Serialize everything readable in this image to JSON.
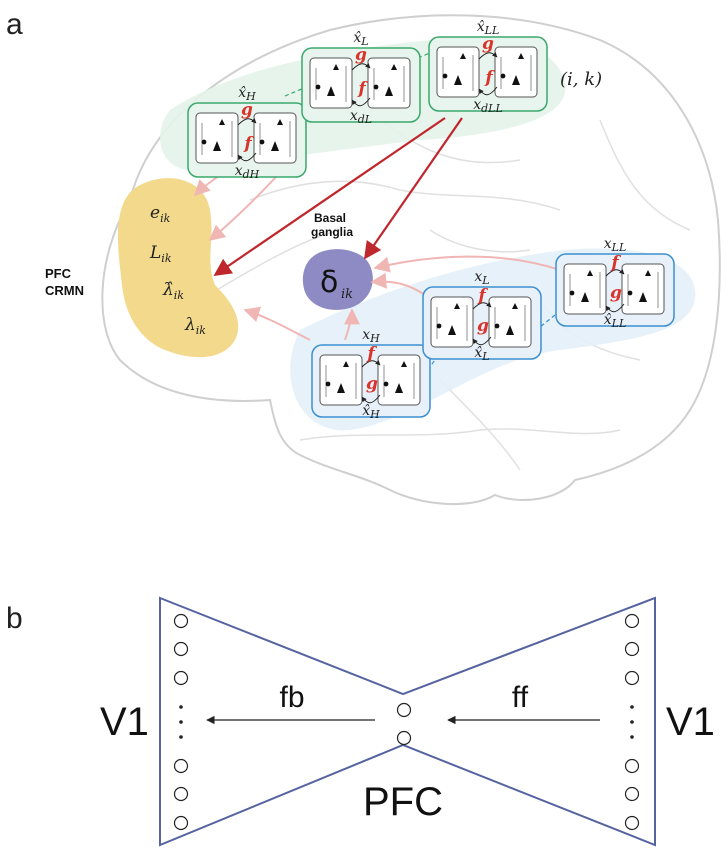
{
  "panel_a": {
    "letter": "a",
    "top_modules": [
      {
        "id": "H",
        "hat_label": "x̂",
        "hat_sub": "H",
        "gen_fn": "g",
        "inf_fn": "f",
        "bottom_label": "x",
        "bottom_sub": "dH"
      },
      {
        "id": "L",
        "hat_label": "x̂",
        "hat_sub": "L",
        "gen_fn": "g",
        "inf_fn": "f",
        "bottom_label": "x",
        "bottom_sub": "dL"
      },
      {
        "id": "LL",
        "hat_label": "x̂",
        "hat_sub": "LL",
        "gen_fn": "g",
        "inf_fn": "f",
        "bottom_label": "x",
        "bottom_sub": "dLL"
      }
    ],
    "index_label": "(i, k)",
    "bottom_modules": [
      {
        "id": "H",
        "top_label": "x",
        "top_sub": "H",
        "inf_fn": "f",
        "gen_fn": "g",
        "hat_label": "x̂",
        "hat_sub": "H"
      },
      {
        "id": "L",
        "top_label": "x",
        "top_sub": "L",
        "inf_fn": "f",
        "gen_fn": "g",
        "hat_label": "x̂",
        "hat_sub": "L"
      },
      {
        "id": "LL",
        "top_label": "x",
        "top_sub": "LL",
        "inf_fn": "f",
        "gen_fn": "g",
        "hat_label": "x̂",
        "hat_sub": "LL"
      }
    ],
    "pfc": {
      "title_line1": "PFC",
      "title_line2": "CRMN",
      "vars": [
        {
          "sym": "e",
          "sub": "ik"
        },
        {
          "sym": "L",
          "sub": "ik"
        },
        {
          "sym": "λ̂",
          "sub": "ik"
        },
        {
          "sym": "λ",
          "sub": "ik"
        }
      ]
    },
    "basal_ganglia": {
      "label_line1": "Basal",
      "label_line2": "ganglia",
      "symbol": "δ",
      "sub": "ik"
    },
    "colors": {
      "top_module_stroke": "#3aa86b",
      "top_region_fill": "#e3f3ea",
      "bottom_module_stroke": "#3b8fd0",
      "bottom_region_fill": "#e4eff8",
      "pfc_fill": "#f2d98c",
      "basal_fill": "#8e8bc4",
      "function_color": "#d9342b",
      "strong_arrow": "#c0272d",
      "soft_arrow": "#f0b6b4"
    }
  },
  "panel_b": {
    "letter": "b",
    "left_label": "V1",
    "right_label": "V1",
    "center_label": "PFC",
    "fb_label": "fb",
    "ff_label": "ff",
    "colors": {
      "outline": "#5563a0"
    }
  }
}
